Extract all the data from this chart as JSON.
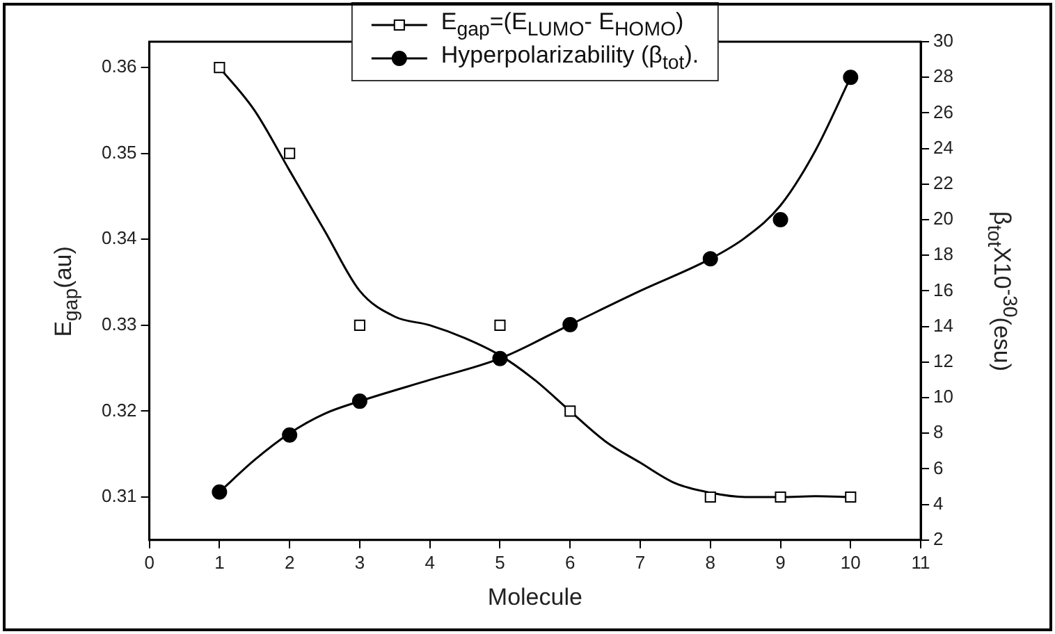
{
  "chart_data": {
    "type": "scatter",
    "xlabel": "Molecule",
    "ylabel": "E$_{gap}$(au)",
    "y2label": "β$_{tot}$X10$^{-30}$(esu)",
    "xlim": [
      0,
      11
    ],
    "xticks": [
      0,
      1,
      2,
      3,
      4,
      5,
      6,
      7,
      8,
      9,
      10,
      11
    ],
    "ylim": [
      0.305,
      0.363
    ],
    "yticks": [
      0.31,
      0.32,
      0.33,
      0.34,
      0.35,
      0.36
    ],
    "y2lim": [
      2,
      30
    ],
    "y2ticks": [
      2,
      4,
      6,
      8,
      10,
      12,
      14,
      16,
      18,
      20,
      22,
      24,
      26,
      28,
      30
    ],
    "grid": false,
    "legend": "top",
    "series": [
      {
        "name": "E$_{gap}$=(E$_{LUMO}$- E$_{HOMO}$)",
        "marker": "square",
        "color": "#000000",
        "x": [
          1,
          2,
          3,
          5,
          6,
          8,
          9,
          10
        ],
        "values": [
          0.36,
          0.35,
          0.33,
          0.33,
          0.32,
          0.31,
          0.31,
          0.31
        ]
      },
      {
        "name": "Hyperpolarizability (β$_{tot}$).",
        "marker": "circle",
        "axis": "y2",
        "color": "#000000",
        "x": [
          1,
          2,
          3,
          5,
          6,
          8,
          9,
          10
        ],
        "values": [
          4.7,
          7.9,
          9.8,
          12.2,
          14.1,
          17.8,
          20.0,
          28.0
        ]
      },
      {
        "type": "line",
        "color": "#000000",
        "x": [
          1,
          1.5,
          2,
          2.5,
          3,
          3.5,
          4,
          4.5,
          5,
          5.5,
          6,
          6.5,
          7,
          7.5,
          8,
          8.5,
          9,
          9.5,
          10
        ],
        "values": [
          0.36,
          0.355,
          0.348,
          0.341,
          0.334,
          0.331,
          0.33,
          0.3285,
          0.3265,
          0.3236,
          0.32,
          0.3165,
          0.314,
          0.3116,
          0.3105,
          0.31,
          0.31,
          0.3101,
          0.31
        ]
      },
      {
        "type": "line",
        "axis": "y2",
        "color": "#000000",
        "x": [
          1,
          1.5,
          2,
          2.5,
          3,
          4,
          5,
          6,
          7,
          8,
          8.5,
          9,
          9.5,
          10
        ],
        "values": [
          4.7,
          6.5,
          8.0,
          9.1,
          9.8,
          11.0,
          12.2,
          14.1,
          16.0,
          17.8,
          19.0,
          20.8,
          23.9,
          28.0
        ]
      }
    ]
  }
}
